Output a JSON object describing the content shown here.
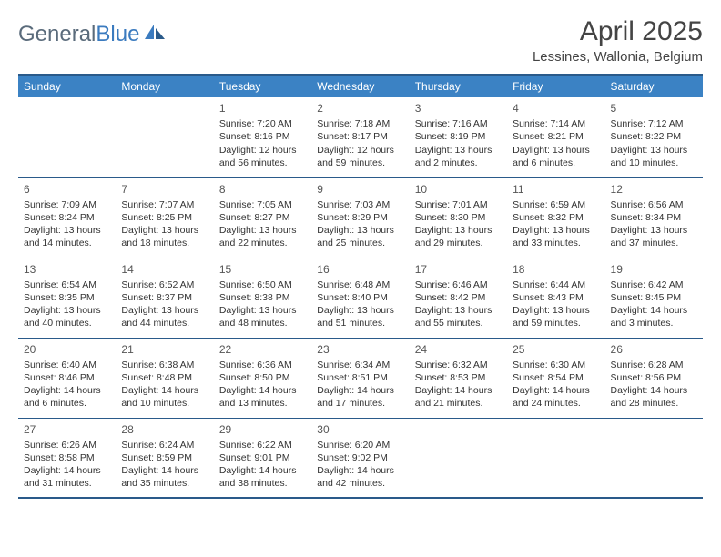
{
  "logo": {
    "text_general": "General",
    "text_blue": "Blue"
  },
  "title": "April 2025",
  "location": "Lessines, Wallonia, Belgium",
  "colors": {
    "header_bg": "#3b82c4",
    "border": "#2a5a8a",
    "logo_gray": "#5a6b7b",
    "logo_blue": "#3b7bbf"
  },
  "weekdays": [
    "Sunday",
    "Monday",
    "Tuesday",
    "Wednesday",
    "Thursday",
    "Friday",
    "Saturday"
  ],
  "weeks": [
    [
      null,
      null,
      {
        "d": "1",
        "sr": "7:20 AM",
        "ss": "8:16 PM",
        "dl": "12 hours and 56 minutes."
      },
      {
        "d": "2",
        "sr": "7:18 AM",
        "ss": "8:17 PM",
        "dl": "12 hours and 59 minutes."
      },
      {
        "d": "3",
        "sr": "7:16 AM",
        "ss": "8:19 PM",
        "dl": "13 hours and 2 minutes."
      },
      {
        "d": "4",
        "sr": "7:14 AM",
        "ss": "8:21 PM",
        "dl": "13 hours and 6 minutes."
      },
      {
        "d": "5",
        "sr": "7:12 AM",
        "ss": "8:22 PM",
        "dl": "13 hours and 10 minutes."
      }
    ],
    [
      {
        "d": "6",
        "sr": "7:09 AM",
        "ss": "8:24 PM",
        "dl": "13 hours and 14 minutes."
      },
      {
        "d": "7",
        "sr": "7:07 AM",
        "ss": "8:25 PM",
        "dl": "13 hours and 18 minutes."
      },
      {
        "d": "8",
        "sr": "7:05 AM",
        "ss": "8:27 PM",
        "dl": "13 hours and 22 minutes."
      },
      {
        "d": "9",
        "sr": "7:03 AM",
        "ss": "8:29 PM",
        "dl": "13 hours and 25 minutes."
      },
      {
        "d": "10",
        "sr": "7:01 AM",
        "ss": "8:30 PM",
        "dl": "13 hours and 29 minutes."
      },
      {
        "d": "11",
        "sr": "6:59 AM",
        "ss": "8:32 PM",
        "dl": "13 hours and 33 minutes."
      },
      {
        "d": "12",
        "sr": "6:56 AM",
        "ss": "8:34 PM",
        "dl": "13 hours and 37 minutes."
      }
    ],
    [
      {
        "d": "13",
        "sr": "6:54 AM",
        "ss": "8:35 PM",
        "dl": "13 hours and 40 minutes."
      },
      {
        "d": "14",
        "sr": "6:52 AM",
        "ss": "8:37 PM",
        "dl": "13 hours and 44 minutes."
      },
      {
        "d": "15",
        "sr": "6:50 AM",
        "ss": "8:38 PM",
        "dl": "13 hours and 48 minutes."
      },
      {
        "d": "16",
        "sr": "6:48 AM",
        "ss": "8:40 PM",
        "dl": "13 hours and 51 minutes."
      },
      {
        "d": "17",
        "sr": "6:46 AM",
        "ss": "8:42 PM",
        "dl": "13 hours and 55 minutes."
      },
      {
        "d": "18",
        "sr": "6:44 AM",
        "ss": "8:43 PM",
        "dl": "13 hours and 59 minutes."
      },
      {
        "d": "19",
        "sr": "6:42 AM",
        "ss": "8:45 PM",
        "dl": "14 hours and 3 minutes."
      }
    ],
    [
      {
        "d": "20",
        "sr": "6:40 AM",
        "ss": "8:46 PM",
        "dl": "14 hours and 6 minutes."
      },
      {
        "d": "21",
        "sr": "6:38 AM",
        "ss": "8:48 PM",
        "dl": "14 hours and 10 minutes."
      },
      {
        "d": "22",
        "sr": "6:36 AM",
        "ss": "8:50 PM",
        "dl": "14 hours and 13 minutes."
      },
      {
        "d": "23",
        "sr": "6:34 AM",
        "ss": "8:51 PM",
        "dl": "14 hours and 17 minutes."
      },
      {
        "d": "24",
        "sr": "6:32 AM",
        "ss": "8:53 PM",
        "dl": "14 hours and 21 minutes."
      },
      {
        "d": "25",
        "sr": "6:30 AM",
        "ss": "8:54 PM",
        "dl": "14 hours and 24 minutes."
      },
      {
        "d": "26",
        "sr": "6:28 AM",
        "ss": "8:56 PM",
        "dl": "14 hours and 28 minutes."
      }
    ],
    [
      {
        "d": "27",
        "sr": "6:26 AM",
        "ss": "8:58 PM",
        "dl": "14 hours and 31 minutes."
      },
      {
        "d": "28",
        "sr": "6:24 AM",
        "ss": "8:59 PM",
        "dl": "14 hours and 35 minutes."
      },
      {
        "d": "29",
        "sr": "6:22 AM",
        "ss": "9:01 PM",
        "dl": "14 hours and 38 minutes."
      },
      {
        "d": "30",
        "sr": "6:20 AM",
        "ss": "9:02 PM",
        "dl": "14 hours and 42 minutes."
      },
      null,
      null,
      null
    ]
  ],
  "labels": {
    "sunrise": "Sunrise: ",
    "sunset": "Sunset: ",
    "daylight": "Daylight: "
  }
}
